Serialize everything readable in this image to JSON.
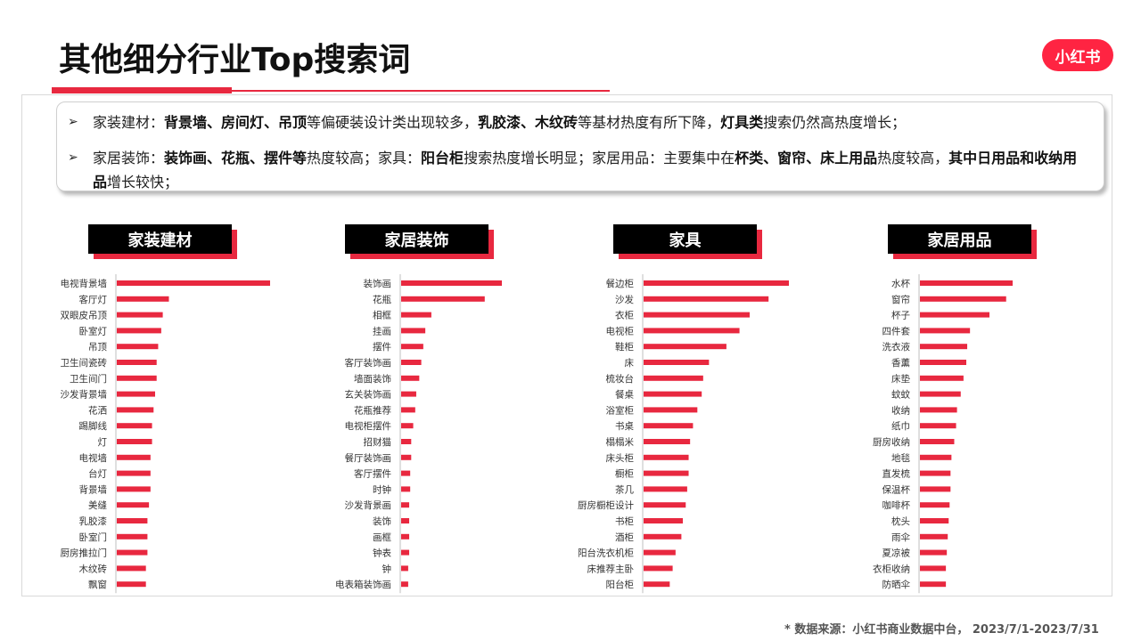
{
  "page": {
    "title": "其他细分行业Top搜索词",
    "logo_text": "小红书",
    "bullet_marker": "➢",
    "bullets": [
      [
        {
          "t": "家装建材："
        },
        {
          "t": "背景墙、房间灯、吊顶",
          "b": true
        },
        {
          "t": "等偏硬装设计类出现较多，"
        },
        {
          "t": "乳胶漆、木纹砖",
          "b": true
        },
        {
          "t": "等基材热度有所下降，"
        },
        {
          "t": "灯具类",
          "b": true
        },
        {
          "t": "搜索仍然高热度增长；"
        }
      ],
      [
        {
          "t": "家居装饰："
        },
        {
          "t": "装饰画、花瓶、摆件等",
          "b": true
        },
        {
          "t": "热度较高；家具："
        },
        {
          "t": "阳台柜",
          "b": true
        },
        {
          "t": "搜索热度增长明显；家居用品：主要集中在"
        },
        {
          "t": "杯类、窗帘、床上用品",
          "b": true
        },
        {
          "t": "热度较高，"
        },
        {
          "t": "其中日用品和收纳用品",
          "b": true
        },
        {
          "t": "增长较快；"
        }
      ]
    ],
    "footer": "* 数据来源：小红书商业数据中台， 2023/7/1-2023/7/31",
    "bar_color": "#e8283f"
  },
  "chart_data": [
    {
      "type": "bar",
      "orientation": "horizontal",
      "title": "家装建材",
      "categories": [
        "电视背景墙",
        "客厅灯",
        "双眼皮吊顶",
        "卧室灯",
        "吊顶",
        "卫生间瓷砖",
        "卫生间门",
        "沙发背景墙",
        "花洒",
        "踢脚线",
        "灯",
        "电视墙",
        "台灯",
        "背景墙",
        "美缝",
        "乳胶漆",
        "卧室门",
        "厨房推拉门",
        "木纹砖",
        "飘窗"
      ],
      "values": [
        100,
        34,
        30,
        29,
        27,
        26,
        26,
        25,
        24,
        23,
        23,
        22,
        22,
        22,
        21,
        20,
        20,
        20,
        19,
        19
      ]
    },
    {
      "type": "bar",
      "orientation": "horizontal",
      "title": "家居装饰",
      "categories": [
        "装饰画",
        "花瓶",
        "相框",
        "挂画",
        "摆件",
        "客厅装饰画",
        "墙面装饰",
        "玄关装饰画",
        "花瓶推荐",
        "电视柜摆件",
        "招财猫",
        "餐厅装饰画",
        "客厅摆件",
        "时钟",
        "沙发背景画",
        "装饰",
        "画框",
        "钟表",
        "钟",
        "电表箱装饰画"
      ],
      "values": [
        100,
        83,
        30,
        24,
        22,
        20,
        18,
        15,
        14,
        12,
        10,
        10,
        9,
        9,
        8,
        8,
        8,
        8,
        7,
        7
      ]
    },
    {
      "type": "bar",
      "orientation": "horizontal",
      "title": "家具",
      "categories": [
        "餐边柜",
        "沙发",
        "衣柜",
        "电视柜",
        "鞋柜",
        "床",
        "梳妆台",
        "餐桌",
        "浴室柜",
        "书桌",
        "榻榻米",
        "床头柜",
        "橱柜",
        "茶几",
        "厨房橱柜设计",
        "书柜",
        "酒柜",
        "阳台洗衣机柜",
        "床推荐主卧",
        "阳台柜"
      ],
      "values": [
        100,
        86,
        73,
        66,
        57,
        45,
        41,
        40,
        37,
        34,
        32,
        31,
        31,
        30,
        29,
        27,
        26,
        22,
        20,
        18
      ]
    },
    {
      "type": "bar",
      "orientation": "horizontal",
      "title": "家居用品",
      "categories": [
        "水杯",
        "窗帘",
        "杯子",
        "四件套",
        "洗衣液",
        "香薰",
        "床垫",
        "蚊蚊",
        "收纳",
        "纸巾",
        "厨房收纳",
        "地毯",
        "直发梳",
        "保温杯",
        "咖啡杯",
        "枕头",
        "雨伞",
        "夏凉被",
        "衣柜收纳",
        "防晒伞"
      ],
      "values": [
        100,
        93,
        75,
        54,
        51,
        50,
        47,
        44,
        40,
        39,
        37,
        34,
        33,
        33,
        32,
        31,
        30,
        29,
        28,
        28
      ]
    }
  ]
}
